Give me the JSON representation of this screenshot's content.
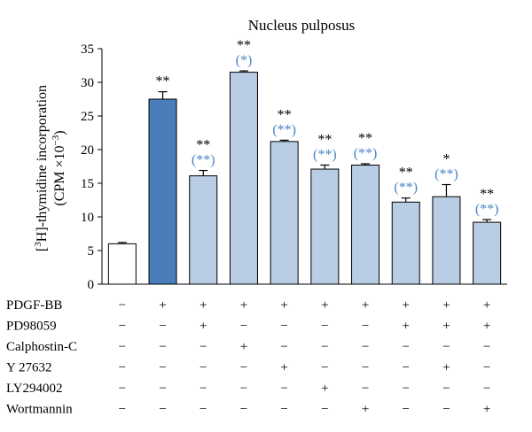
{
  "chart_data": {
    "type": "bar",
    "title": "Nucleus pulposus",
    "ylabel_line1_pre": "[",
    "ylabel_sup1": "3",
    "ylabel_line1_post": "H]-thymidine incorporation",
    "ylabel_line2_pre": "(CPM ×10",
    "ylabel_sup2": "−3",
    "ylabel_line2_post": ")",
    "ylim": [
      0,
      35
    ],
    "yticks": [
      0,
      5,
      10,
      15,
      20,
      25,
      30,
      35
    ],
    "colors": {
      "control": "#ffffff",
      "pdgf": "#4a7ebb",
      "treated": "#b9cde5",
      "stroke": "#000000",
      "significance_blue": "#4a86c8"
    },
    "bars": [
      {
        "value": 6.0,
        "error": 0.2,
        "fill": "control",
        "star_black": "",
        "star_blue": ""
      },
      {
        "value": 27.5,
        "error": 1.1,
        "fill": "pdgf",
        "star_black": "**",
        "star_blue": ""
      },
      {
        "value": 16.1,
        "error": 0.8,
        "fill": "treated",
        "star_black": "**",
        "star_blue": "(**)"
      },
      {
        "value": 31.5,
        "error": 0.2,
        "fill": "treated",
        "star_black": "**",
        "star_blue": "(*)"
      },
      {
        "value": 21.2,
        "error": 0.2,
        "fill": "treated",
        "star_black": "**",
        "star_blue": "(**)"
      },
      {
        "value": 17.1,
        "error": 0.6,
        "fill": "treated",
        "star_black": "**",
        "star_blue": "(**)"
      },
      {
        "value": 17.7,
        "error": 0.2,
        "fill": "treated",
        "star_black": "**",
        "star_blue": "(**)"
      },
      {
        "value": 12.2,
        "error": 0.6,
        "fill": "treated",
        "star_black": "**",
        "star_blue": "(**)"
      },
      {
        "value": 13.0,
        "error": 1.8,
        "fill": "treated",
        "star_black": "*",
        "star_blue": "(**)"
      },
      {
        "value": 9.2,
        "error": 0.4,
        "fill": "treated",
        "star_black": "**",
        "star_blue": "(**)"
      }
    ],
    "treatment_table": [
      {
        "label": "PDGF-BB",
        "signs": [
          "−",
          "+",
          "+",
          "+",
          "+",
          "+",
          "+",
          "+",
          "+",
          "+"
        ]
      },
      {
        "label": "PD98059",
        "signs": [
          "−",
          "−",
          "+",
          "−",
          "−",
          "−",
          "−",
          "+",
          "+",
          "+"
        ]
      },
      {
        "label": "Calphostin-C",
        "signs": [
          "−",
          "−",
          "−",
          "+",
          "−",
          "−",
          "−",
          "−",
          "−",
          "−"
        ]
      },
      {
        "label": "Y 27632",
        "signs": [
          "−",
          "−",
          "−",
          "−",
          "+",
          "−",
          "−",
          "−",
          "+",
          "−"
        ]
      },
      {
        "label": "LY294002",
        "signs": [
          "−",
          "−",
          "−",
          "−",
          "−",
          "+",
          "−",
          "−",
          "−",
          "−"
        ]
      },
      {
        "label": "Wortmannin",
        "signs": [
          "−",
          "−",
          "−",
          "−",
          "−",
          "−",
          "+",
          "−",
          "−",
          "+"
        ]
      }
    ]
  }
}
